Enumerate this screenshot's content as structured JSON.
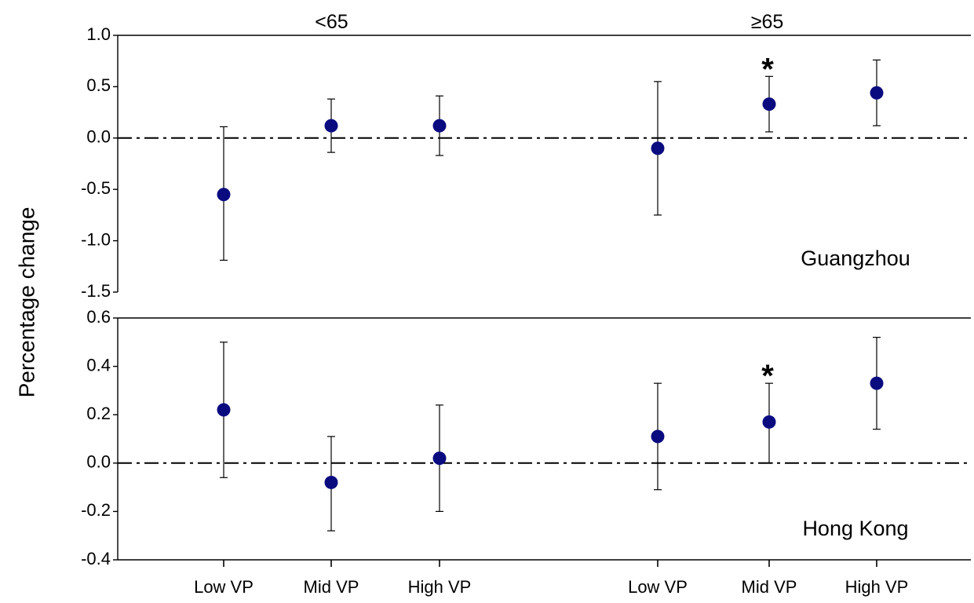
{
  "chart_data": {
    "type": "scatter",
    "ylabel": "Percentage change",
    "colors": {
      "point": "#0b0b80",
      "axis": "#000000"
    },
    "groups": [
      {
        "label": "<65",
        "categories": [
          "Low VP",
          "Mid VP",
          "High VP"
        ]
      },
      {
        "label": "≥65",
        "categories": [
          "Low VP",
          "Mid VP",
          "High VP"
        ]
      }
    ],
    "x_tick_labels": [
      "Low VP",
      "Mid VP",
      "High VP",
      "Low VP",
      "Mid VP",
      "High VP"
    ],
    "reference_line": 0,
    "panels": [
      {
        "name": "Guangzhou",
        "ylim": [
          -1.5,
          1.0
        ],
        "yticks": [
          "1.0",
          "0.5",
          "0.0",
          "-0.5",
          "-1.0",
          "-1.5"
        ],
        "ytick_values": [
          1.0,
          0.5,
          0.0,
          -0.5,
          -1.0,
          -1.5
        ],
        "points": [
          {
            "group": "<65",
            "category": "Low VP",
            "y": -0.55,
            "lower": -1.19,
            "upper": 0.11
          },
          {
            "group": "<65",
            "category": "Mid VP",
            "y": 0.12,
            "lower": -0.14,
            "upper": 0.38
          },
          {
            "group": "<65",
            "category": "High VP",
            "y": 0.12,
            "lower": -0.17,
            "upper": 0.41
          },
          {
            "group": "≥65",
            "category": "Low VP",
            "y": -0.1,
            "lower": -0.75,
            "upper": 0.55
          },
          {
            "group": "≥65",
            "category": "Mid VP",
            "y": 0.33,
            "lower": 0.06,
            "upper": 0.6
          },
          {
            "group": "≥65",
            "category": "High VP",
            "y": 0.44,
            "lower": 0.12,
            "upper": 0.76
          }
        ],
        "significance": [
          {
            "point_index": 4,
            "mark": "*"
          }
        ]
      },
      {
        "name": "Hong Kong",
        "ylim": [
          -0.4,
          0.6
        ],
        "yticks": [
          "0.6",
          "0.4",
          "0.2",
          "0.0",
          "-0.2",
          "-0.4"
        ],
        "ytick_values": [
          0.6,
          0.4,
          0.2,
          0.0,
          -0.2,
          -0.4
        ],
        "points": [
          {
            "group": "<65",
            "category": "Low VP",
            "y": 0.22,
            "lower": -0.06,
            "upper": 0.5
          },
          {
            "group": "<65",
            "category": "Mid VP",
            "y": -0.08,
            "lower": -0.28,
            "upper": 0.11
          },
          {
            "group": "<65",
            "category": "High VP",
            "y": 0.02,
            "lower": -0.2,
            "upper": 0.24
          },
          {
            "group": "≥65",
            "category": "Low VP",
            "y": 0.11,
            "lower": -0.11,
            "upper": 0.33
          },
          {
            "group": "≥65",
            "category": "Mid VP",
            "y": 0.17,
            "lower": 0.0,
            "upper": 0.33
          },
          {
            "group": "≥65",
            "category": "High VP",
            "y": 0.33,
            "lower": 0.14,
            "upper": 0.52
          }
        ],
        "significance": [
          {
            "point_index": 4,
            "mark": "*"
          }
        ]
      }
    ]
  }
}
